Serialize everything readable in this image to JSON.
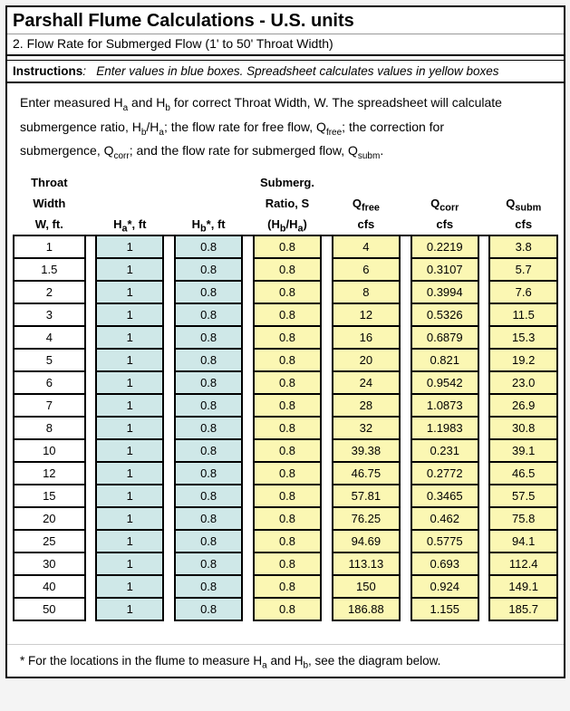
{
  "title": "Parshall Flume Calculations  -  U.S. units",
  "subtitle": "2.  Flow Rate for Submerged Flow (1' to 50' Throat Width)",
  "instructions_label": "Instructions",
  "instructions_text": "Enter values in blue boxes.  Spreadsheet calculates values in yellow boxes",
  "desc_line1a": "Enter measured H",
  "desc_line1b": " and H",
  "desc_line1c": " for correct Throat Width, W.  The spreadsheet will calculate",
  "desc_line2a": "submergence ratio, H",
  "desc_line2b": "/H",
  "desc_line2c": ";  the flow rate for free flow, Q",
  "desc_line2d": ";  the correction for",
  "desc_line3a": "submergence, Q",
  "desc_line3b": ";  and the flow rate for submerged flow, Q",
  "desc_line3c": ".",
  "headers": {
    "throat1": "Throat",
    "throat2": "Width",
    "throat3": "W, ft.",
    "ha": "H",
    "ha_sub": "a",
    "ha_suf": "*, ft",
    "hb": "H",
    "hb_sub": "b",
    "hb_suf": "*, ft",
    "ratio1": "Submerg.",
    "ratio2": "Ratio, S",
    "ratio3a": "(H",
    "ratio3b": "/H",
    "ratio3c": ")",
    "qfree": "Q",
    "qfree_sub": "free",
    "qcorr": "Q",
    "qcorr_sub": "corr",
    "qsubm": "Q",
    "qsubm_sub": "subm",
    "cfs": "cfs"
  },
  "rows": [
    {
      "w": "1",
      "ha": "1",
      "hb": "0.8",
      "s": "0.8",
      "qf": "4",
      "qc": "0.2219",
      "qs": "3.8"
    },
    {
      "w": "1.5",
      "ha": "1",
      "hb": "0.8",
      "s": "0.8",
      "qf": "6",
      "qc": "0.3107",
      "qs": "5.7"
    },
    {
      "w": "2",
      "ha": "1",
      "hb": "0.8",
      "s": "0.8",
      "qf": "8",
      "qc": "0.3994",
      "qs": "7.6"
    },
    {
      "w": "3",
      "ha": "1",
      "hb": "0.8",
      "s": "0.8",
      "qf": "12",
      "qc": "0.5326",
      "qs": "11.5"
    },
    {
      "w": "4",
      "ha": "1",
      "hb": "0.8",
      "s": "0.8",
      "qf": "16",
      "qc": "0.6879",
      "qs": "15.3"
    },
    {
      "w": "5",
      "ha": "1",
      "hb": "0.8",
      "s": "0.8",
      "qf": "20",
      "qc": "0.821",
      "qs": "19.2"
    },
    {
      "w": "6",
      "ha": "1",
      "hb": "0.8",
      "s": "0.8",
      "qf": "24",
      "qc": "0.9542",
      "qs": "23.0"
    },
    {
      "w": "7",
      "ha": "1",
      "hb": "0.8",
      "s": "0.8",
      "qf": "28",
      "qc": "1.0873",
      "qs": "26.9"
    },
    {
      "w": "8",
      "ha": "1",
      "hb": "0.8",
      "s": "0.8",
      "qf": "32",
      "qc": "1.1983",
      "qs": "30.8"
    },
    {
      "w": "10",
      "ha": "1",
      "hb": "0.8",
      "s": "0.8",
      "qf": "39.38",
      "qc": "0.231",
      "qs": "39.1"
    },
    {
      "w": "12",
      "ha": "1",
      "hb": "0.8",
      "s": "0.8",
      "qf": "46.75",
      "qc": "0.2772",
      "qs": "46.5"
    },
    {
      "w": "15",
      "ha": "1",
      "hb": "0.8",
      "s": "0.8",
      "qf": "57.81",
      "qc": "0.3465",
      "qs": "57.5"
    },
    {
      "w": "20",
      "ha": "1",
      "hb": "0.8",
      "s": "0.8",
      "qf": "76.25",
      "qc": "0.462",
      "qs": "75.8"
    },
    {
      "w": "25",
      "ha": "1",
      "hb": "0.8",
      "s": "0.8",
      "qf": "94.69",
      "qc": "0.5775",
      "qs": "94.1"
    },
    {
      "w": "30",
      "ha": "1",
      "hb": "0.8",
      "s": "0.8",
      "qf": "113.13",
      "qc": "0.693",
      "qs": "112.4"
    },
    {
      "w": "40",
      "ha": "1",
      "hb": "0.8",
      "s": "0.8",
      "qf": "150",
      "qc": "0.924",
      "qs": "149.1"
    },
    {
      "w": "50",
      "ha": "1",
      "hb": "0.8",
      "s": "0.8",
      "qf": "186.88",
      "qc": "1.155",
      "qs": "185.7"
    }
  ],
  "footnote_a": "* For the locations in the flume to measure H",
  "footnote_b": " and H",
  "footnote_c": ", see the diagram below."
}
